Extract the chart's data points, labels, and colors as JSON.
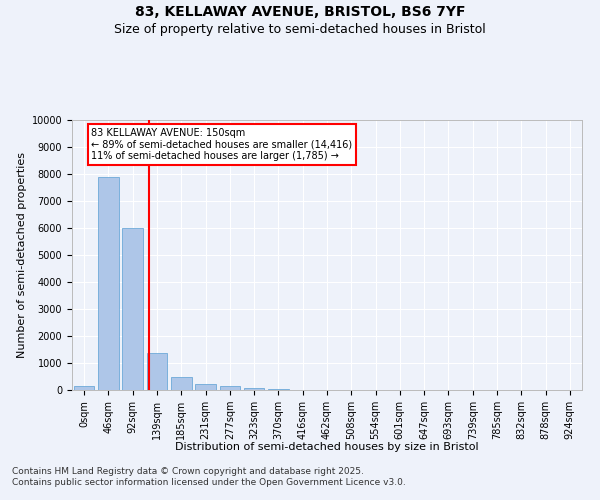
{
  "title_line1": "83, KELLAWAY AVENUE, BRISTOL, BS6 7YF",
  "title_line2": "Size of property relative to semi-detached houses in Bristol",
  "xlabel": "Distribution of semi-detached houses by size in Bristol",
  "ylabel": "Number of semi-detached properties",
  "bar_color": "#aec6e8",
  "bar_edge_color": "#5a9fd4",
  "vline_color": "red",
  "vline_x_index": 3,
  "annotation_text": "83 KELLAWAY AVENUE: 150sqm\n← 89% of semi-detached houses are smaller (14,416)\n11% of semi-detached houses are larger (1,785) →",
  "annotation_box_color": "red",
  "categories": [
    "0sqm",
    "46sqm",
    "92sqm",
    "139sqm",
    "185sqm",
    "231sqm",
    "277sqm",
    "323sqm",
    "370sqm",
    "416sqm",
    "462sqm",
    "508sqm",
    "554sqm",
    "601sqm",
    "647sqm",
    "693sqm",
    "739sqm",
    "785sqm",
    "832sqm",
    "878sqm",
    "924sqm"
  ],
  "values": [
    150,
    7900,
    6000,
    1380,
    490,
    220,
    130,
    80,
    30,
    10,
    5,
    2,
    1,
    0,
    0,
    0,
    0,
    0,
    0,
    0,
    0
  ],
  "ylim": [
    0,
    10000
  ],
  "yticks": [
    0,
    1000,
    2000,
    3000,
    4000,
    5000,
    6000,
    7000,
    8000,
    9000,
    10000
  ],
  "footer_text": "Contains HM Land Registry data © Crown copyright and database right 2025.\nContains public sector information licensed under the Open Government Licence v3.0.",
  "background_color": "#eef2fa",
  "plot_bg_color": "#eef2fa",
  "grid_color": "#ffffff",
  "title_fontsize": 10,
  "subtitle_fontsize": 9,
  "axis_label_fontsize": 8,
  "tick_fontsize": 7,
  "footer_fontsize": 6.5
}
